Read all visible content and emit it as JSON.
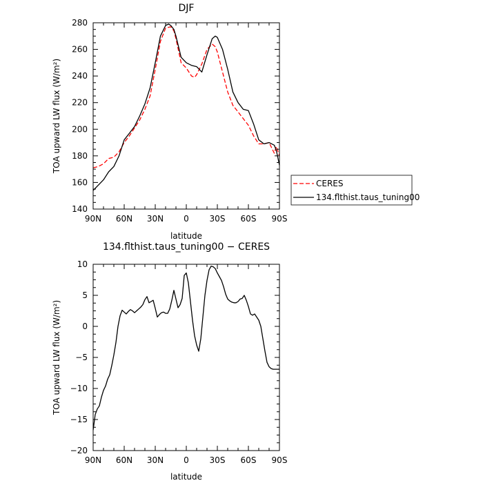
{
  "chart_data": [
    {
      "type": "line",
      "title": "DJF",
      "xlabel": "latitude",
      "ylabel": "TOA upward LW flux (W/m²)",
      "xlim": [
        -90,
        90
      ],
      "ylim": [
        140,
        280
      ],
      "xticks": [
        -90,
        -60,
        -30,
        0,
        30,
        60,
        90
      ],
      "xticklabels": [
        "90N",
        "60N",
        "30N",
        "0",
        "30S",
        "60S",
        "90S"
      ],
      "yticks": [
        140,
        160,
        180,
        200,
        220,
        240,
        260,
        280
      ],
      "yticklabels": [
        "140",
        "160",
        "180",
        "200",
        "220",
        "240",
        "260",
        "280"
      ],
      "legend_position": "right",
      "series": [
        {
          "name": "CERES",
          "color": "#ff0000",
          "dash": true,
          "x": [
            -90,
            -85,
            -80,
            -75,
            -70,
            -65,
            -60,
            -55,
            -50,
            -45,
            -40,
            -35,
            -30,
            -25,
            -20,
            -15,
            -12,
            -10,
            -5,
            0,
            5,
            8,
            10,
            15,
            20,
            25,
            28,
            30,
            35,
            40,
            45,
            50,
            55,
            60,
            65,
            70,
            75,
            80,
            85,
            87,
            90
          ],
          "y": [
            171,
            172,
            174,
            178,
            179,
            183,
            190,
            195,
            201,
            207,
            215,
            225,
            245,
            266,
            276,
            277,
            274,
            268,
            250,
            246,
            240,
            239,
            241,
            249,
            260,
            264,
            262,
            258,
            243,
            228,
            218,
            213,
            208,
            203,
            195,
            189,
            189,
            190,
            182,
            187,
            180
          ]
        },
        {
          "name": "134.flthist.taus_tuning00",
          "color": "#000000",
          "dash": false,
          "x": [
            -90,
            -85,
            -80,
            -75,
            -70,
            -65,
            -60,
            -55,
            -50,
            -45,
            -40,
            -35,
            -30,
            -25,
            -20,
            -17,
            -15,
            -12,
            -10,
            -5,
            0,
            5,
            10,
            15,
            20,
            25,
            28,
            30,
            35,
            40,
            45,
            50,
            55,
            60,
            65,
            70,
            75,
            80,
            85,
            87,
            90
          ],
          "y": [
            154,
            158,
            162,
            168,
            172,
            180,
            192,
            197,
            202,
            210,
            219,
            231,
            250,
            270,
            278,
            279,
            278,
            275,
            270,
            254,
            250,
            248,
            247,
            243,
            256,
            268,
            270,
            269,
            260,
            245,
            228,
            220,
            215,
            214,
            204,
            192,
            189,
            190,
            188,
            184,
            173
          ]
        }
      ]
    },
    {
      "type": "line",
      "title": "134.flthist.taus_tuning00 − CERES",
      "xlabel": "latitude",
      "ylabel": "TOA upward LW flux (W/m²)",
      "xlim": [
        -90,
        90
      ],
      "ylim": [
        -20,
        10
      ],
      "xticks": [
        -90,
        -60,
        -30,
        0,
        30,
        60,
        90
      ],
      "xticklabels": [
        "90N",
        "60N",
        "30N",
        "0",
        "30S",
        "60S",
        "90S"
      ],
      "yticks": [
        -20,
        -15,
        -10,
        -5,
        0,
        5,
        10
      ],
      "yticklabels": [
        "−20",
        "−15",
        "−10",
        "−5",
        "0",
        "5",
        "10"
      ],
      "series": [
        {
          "color": "#000000",
          "x": [
            -90,
            -88,
            -86,
            -84,
            -82,
            -80,
            -78,
            -76,
            -74,
            -72,
            -70,
            -68,
            -66,
            -64,
            -62,
            -60,
            -58,
            -56,
            -54,
            -52,
            -50,
            -48,
            -46,
            -44,
            -42,
            -40,
            -38,
            -36,
            -34,
            -32,
            -30,
            -28,
            -26,
            -24,
            -22,
            -20,
            -18,
            -16,
            -14,
            -12,
            -10,
            -8,
            -6,
            -4,
            -2,
            0,
            2,
            4,
            6,
            8,
            10,
            12,
            14,
            16,
            18,
            20,
            22,
            24,
            26,
            28,
            30,
            32,
            34,
            36,
            38,
            40,
            42,
            44,
            46,
            48,
            50,
            52,
            54,
            56,
            58,
            60,
            62,
            64,
            66,
            68,
            70,
            72,
            74,
            76,
            78,
            80,
            82,
            84,
            86,
            88,
            90
          ],
          "y": [
            -16.7,
            -14.2,
            -13.3,
            -12.8,
            -11.4,
            -10.3,
            -9.6,
            -8.5,
            -7.8,
            -6.3,
            -4.6,
            -2.6,
            0,
            1.7,
            2.6,
            2.3,
            2.0,
            2.4,
            2.7,
            2.5,
            2.2,
            2.5,
            2.8,
            3.1,
            3.5,
            4.3,
            4.8,
            3.8,
            4.0,
            4.2,
            2.9,
            1.5,
            1.9,
            2.2,
            2.3,
            2.1,
            2.1,
            2.8,
            4.2,
            5.8,
            4.4,
            3.0,
            3.5,
            4.5,
            8.2,
            8.6,
            7.0,
            4.0,
            1.0,
            -1.5,
            -3.0,
            -4.0,
            -2.0,
            1.5,
            5.0,
            7.4,
            9.1,
            9.7,
            9.6,
            9.3,
            8.6,
            8.0,
            7.4,
            6.4,
            5.2,
            4.4,
            4.1,
            3.9,
            3.8,
            3.8,
            4.0,
            4.4,
            4.5,
            5.0,
            4.2,
            3.2,
            2.0,
            1.8,
            2.0,
            1.5,
            1.0,
            0,
            -2.0,
            -4.0,
            -5.8,
            -6.5,
            -6.8,
            -6.9,
            -6.9,
            -6.9,
            -6.9
          ]
        }
      ]
    }
  ]
}
